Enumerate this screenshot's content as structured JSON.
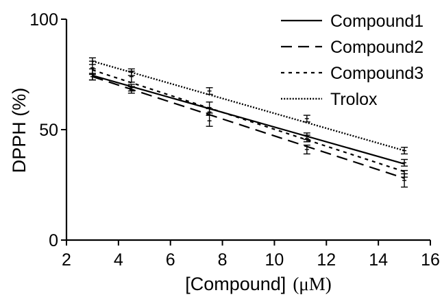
{
  "chart_data": {
    "type": "line",
    "xlabel": "[Compound]",
    "xunit": "(μM)",
    "ylabel": "DPPH (%)",
    "xlim": [
      2,
      16
    ],
    "ylim": [
      0,
      100
    ],
    "xticks": [
      2,
      4,
      6,
      8,
      10,
      12,
      14,
      16
    ],
    "yticks": [
      0,
      50,
      100
    ],
    "x": [
      3,
      4.5,
      7.5,
      11.25,
      15
    ],
    "legend_position": "top-right",
    "grid": false,
    "series": [
      {
        "name": "Compound1",
        "dash": "solid",
        "points": [
          74,
          69,
          58,
          46,
          35
        ],
        "fit": [
          74.5,
          34.5
        ],
        "err": [
          1.5,
          1.5,
          1.5,
          1.5,
          1.5
        ]
      },
      {
        "name": "Compound2",
        "dash": "long-dash",
        "points": [
          75,
          68,
          54,
          41,
          27
        ],
        "fit": [
          74,
          28
        ],
        "err": [
          2.5,
          1.5,
          2.5,
          2,
          3
        ]
      },
      {
        "name": "Compound3",
        "dash": "short-dash",
        "points": [
          78,
          74,
          60,
          47,
          30
        ],
        "fit": [
          77,
          31
        ],
        "err": [
          3,
          2.5,
          2.5,
          1.5,
          1.5
        ]
      },
      {
        "name": "Trolox",
        "dash": "dotted",
        "points": [
          81,
          76,
          67.5,
          55,
          40.5
        ],
        "fit": [
          81,
          40.5
        ],
        "err": [
          1.5,
          1.5,
          1.5,
          1.5,
          1.5
        ]
      }
    ]
  }
}
